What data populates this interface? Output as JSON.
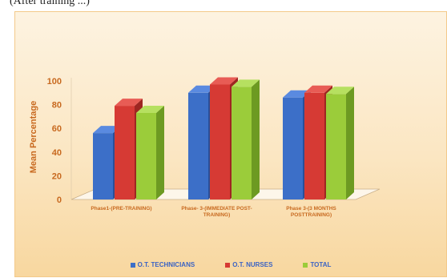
{
  "caption": "(After training ...)",
  "chart_data": {
    "type": "bar",
    "categories": [
      [
        "Phase1-(PRE-TRAINING)"
      ],
      [
        "Phase- 3-(IMMEDIATE POST-",
        "TRAINING)"
      ],
      [
        "Phase 3-(3 MONTHS",
        "POSTTRAINING)"
      ]
    ],
    "series": [
      {
        "name": "O.T. TECHNICIANS",
        "values": [
          56,
          90,
          86
        ],
        "color": "#3c6fc8",
        "top": "#5a8ae0",
        "side": "#2a4f99"
      },
      {
        "name": "O.T. NURSES",
        "values": [
          79,
          97,
          90
        ],
        "color": "#d63a34",
        "top": "#e85c55",
        "side": "#9e2622"
      },
      {
        "name": "TOTAL",
        "values": [
          73,
          95,
          89
        ],
        "color": "#9bcc3a",
        "top": "#b6e060",
        "side": "#6d9a22"
      }
    ],
    "ylabel": "Mean Percentage",
    "ylim": [
      0,
      100
    ],
    "yticks": [
      0,
      20,
      40,
      60,
      80,
      100
    ],
    "legend_position": "bottom",
    "grid": false
  }
}
